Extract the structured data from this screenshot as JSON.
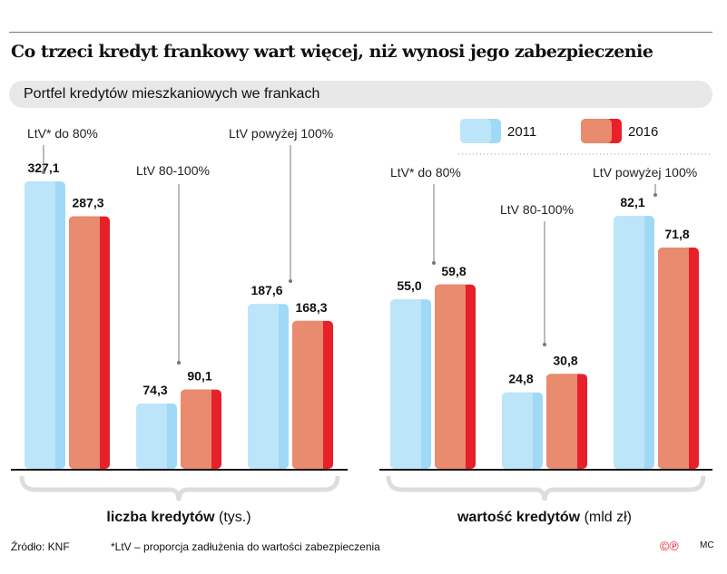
{
  "title": "Co trzeci kredyt frankowy wart więcej, niż wynosi jego zabezpieczenie",
  "subtitle": "Portfel kredytów mieszkaniowych we frankach",
  "legend": [
    "2011",
    "2016"
  ],
  "colors": {
    "2011": "#bde5f9",
    "2011_edge": "#9fd9f5",
    "2016": "#e98b6e",
    "2016_edge": "#e8202a"
  },
  "chart_data": [
    {
      "type": "bar",
      "categories": [
        "LtV* do 80%",
        "LtV 80-100%",
        "LtV powyżej 100%"
      ],
      "series": [
        {
          "name": "2011",
          "values": [
            327.1,
            74.3,
            187.6
          ]
        },
        {
          "name": "2016",
          "values": [
            287.3,
            90.1,
            168.3
          ]
        }
      ],
      "value_labels": [
        [
          "327,1",
          "74,3",
          "187,6"
        ],
        [
          "287,3",
          "90,1",
          "168,3"
        ]
      ],
      "xlabel_bold": "liczba kredytów",
      "xlabel_unit": "(tys.)",
      "ylim": [
        0,
        330
      ]
    },
    {
      "type": "bar",
      "categories": [
        "LtV* do 80%",
        "LtV 80-100%",
        "LtV powyżej 100%"
      ],
      "series": [
        {
          "name": "2011",
          "values": [
            55.0,
            24.8,
            82.1
          ]
        },
        {
          "name": "2016",
          "values": [
            59.8,
            30.8,
            71.8
          ]
        }
      ],
      "value_labels": [
        [
          "55,0",
          "24,8",
          "82,1"
        ],
        [
          "59,8",
          "30,8",
          "71,8"
        ]
      ],
      "xlabel_bold": "wartość kredytów",
      "xlabel_unit": "(mld zł)",
      "ylim": [
        0,
        82.1
      ]
    }
  ],
  "footer": {
    "source": "Źródło: KNF",
    "note": "*LtV – proporcja zadłużenia do wartości zabezpieczenia",
    "author": "MC"
  }
}
